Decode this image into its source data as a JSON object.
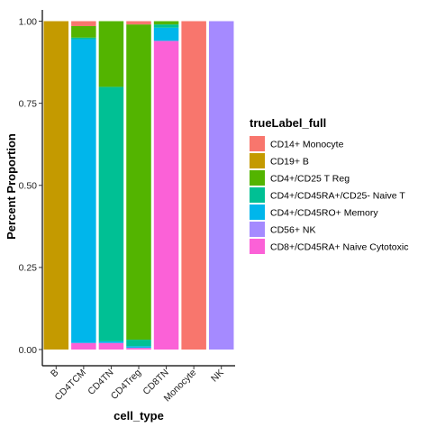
{
  "chart_data": {
    "type": "bar",
    "stacked": true,
    "title": "",
    "xlabel": "cell_type",
    "ylabel": "Percent Proportion",
    "ylim": [
      0,
      1
    ],
    "yticks": [
      "0.00",
      "0.25",
      "0.50",
      "0.75",
      "1.00"
    ],
    "ytick_values": [
      0,
      0.25,
      0.5,
      0.75,
      1.0
    ],
    "grid": false,
    "legend_position": "right",
    "legend_title": "trueLabel_full",
    "categories": [
      "B",
      "CD4TCM",
      "CD4TN",
      "CD4Treg",
      "CD8TN",
      "Monocyte",
      "NK"
    ],
    "series": [
      {
        "name": "CD14+ Monocyte",
        "color": "#F8766D",
        "values": [
          0.0,
          0.015,
          0.0,
          0.01,
          0.0,
          1.0,
          0.0
        ]
      },
      {
        "name": "CD19+ B",
        "color": "#C49A00",
        "values": [
          1.0,
          0.0,
          0.0,
          0.0,
          0.0,
          0.0,
          0.0
        ]
      },
      {
        "name": "CD4+/CD25 T Reg",
        "color": "#53B400",
        "values": [
          0.0,
          0.035,
          0.2,
          0.96,
          0.01,
          0.0,
          0.0
        ]
      },
      {
        "name": "CD4+/CD45RA+/CD25- Naive T",
        "color": "#00C094",
        "values": [
          0.0,
          0.005,
          0.775,
          0.02,
          0.01,
          0.0,
          0.0
        ]
      },
      {
        "name": "CD4+/CD45RO+ Memory",
        "color": "#00B6EB",
        "values": [
          0.0,
          0.925,
          0.005,
          0.005,
          0.04,
          0.0,
          0.0
        ]
      },
      {
        "name": "CD56+ NK",
        "color": "#A58AFF",
        "values": [
          0.0,
          0.0,
          0.0,
          0.0,
          0.0,
          0.0,
          1.0
        ]
      },
      {
        "name": "CD8+/CD45RA+ Naive Cytotoxic",
        "color": "#FB61D7",
        "values": [
          0.0,
          0.02,
          0.02,
          0.005,
          0.94,
          0.0,
          0.0
        ]
      }
    ]
  }
}
